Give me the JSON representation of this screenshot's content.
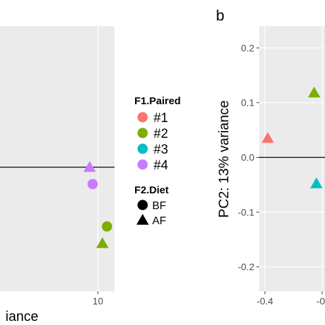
{
  "chart_data": [
    {
      "panel": "a",
      "type": "scatter",
      "xlabel": "iance",
      "ylabel": "",
      "xlim": [
        -3,
        12.2
      ],
      "ylim": [
        -0.22,
        0.25
      ],
      "x_ticks": [
        10
      ],
      "x_tick_labels": [
        "10"
      ],
      "hline": 0,
      "points": [
        {
          "x": 8.9,
          "y": 0.0,
          "group": "#4",
          "diet": "AF"
        },
        {
          "x": 9.3,
          "y": -0.03,
          "group": "#4",
          "diet": "BF"
        },
        {
          "x": 11.2,
          "y": -0.105,
          "group": "#2",
          "diet": "BF"
        },
        {
          "x": 10.6,
          "y": -0.135,
          "group": "#2",
          "diet": "AF"
        }
      ]
    },
    {
      "panel": "b",
      "panel_letter": "b",
      "type": "scatter",
      "xlabel": "",
      "ylabel": "PC2: 13% variance",
      "xlim": [
        -0.42,
        -0.19
      ],
      "ylim": [
        -0.245,
        0.24
      ],
      "x_ticks": [
        -0.4,
        -0.2
      ],
      "x_tick_labels": [
        "-0.4",
        "-0."
      ],
      "y_ticks": [
        0.2,
        0.1,
        0.0,
        -0.1,
        -0.2
      ],
      "y_tick_labels": [
        "0.2",
        "0.1",
        "0.0",
        "-0.1",
        "-0.2"
      ],
      "hline": 0,
      "points": [
        {
          "x": -0.39,
          "y": 0.035,
          "group": "#1",
          "diet": "AF"
        },
        {
          "x": -0.228,
          "y": 0.118,
          "group": "#2",
          "diet": "AF"
        },
        {
          "x": -0.22,
          "y": -0.048,
          "group": "#3",
          "diet": "AF"
        }
      ]
    }
  ],
  "legend": {
    "color_title": "F1.Paired",
    "color_items": [
      {
        "label": "#1",
        "color": "#f8766d"
      },
      {
        "label": "#2",
        "color": "#7cae00"
      },
      {
        "label": "#3",
        "color": "#00bfc4"
      },
      {
        "label": "#4",
        "color": "#c77cff"
      }
    ],
    "shape_title": "F2.Diet",
    "shape_items": [
      {
        "label": "BF",
        "shape": "circle"
      },
      {
        "label": "AF",
        "shape": "triangle"
      }
    ]
  }
}
